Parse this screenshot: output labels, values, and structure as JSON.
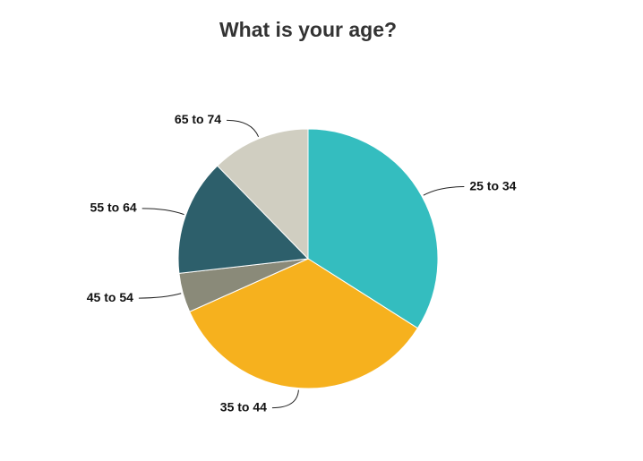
{
  "chart_data": {
    "type": "pie",
    "title": "What is your age?",
    "categories": [
      "25 to 34",
      "35 to 44",
      "45 to 54",
      "55 to 64",
      "65 to 74"
    ],
    "values": [
      34,
      34.3,
      4.9,
      14.5,
      12.3
    ],
    "colors": [
      "#34bdbf",
      "#f6b11e",
      "#8a8a79",
      "#2d5f6b",
      "#d0cec1"
    ]
  }
}
